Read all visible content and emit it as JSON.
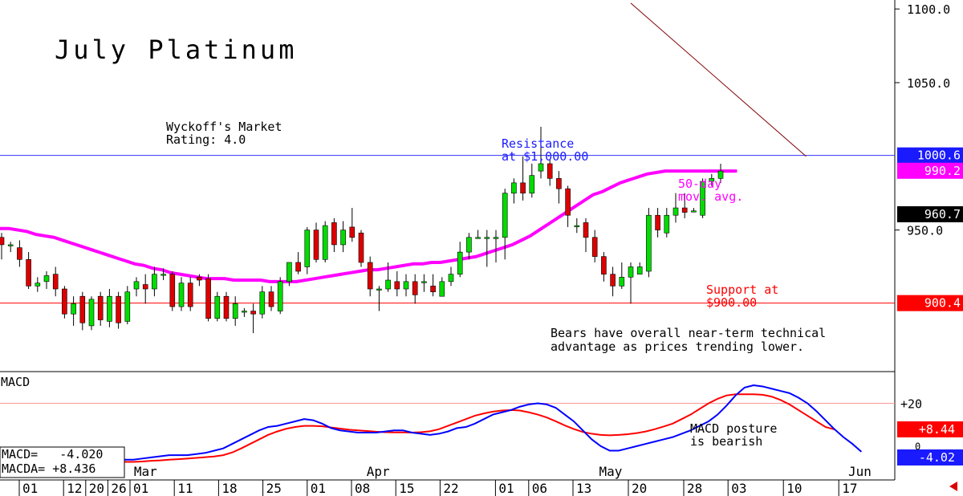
{
  "colors": {
    "up": "#00dd00",
    "down": "#dd0000",
    "ma": "#ff00ff",
    "macd": "#0000ff",
    "signal": "#ff0000",
    "resistance": "#3333ff",
    "support": "#ff0000",
    "trendline": "#800000"
  },
  "chart_data": {
    "type": "candlestick",
    "title": "July Platinum",
    "rating_line1": "Wyckoff's Market",
    "rating_line2": "Rating: 4.0",
    "price_ylim": [
      855,
      1105
    ],
    "price_ticks": [
      "1100.0",
      "1050.0",
      "950.0"
    ],
    "price_tick_values": [
      1100,
      1050,
      950
    ],
    "x_range": [
      -1,
      86
    ],
    "price_labels": [
      {
        "text": "1000.6",
        "value": 1000.6,
        "color": "#1a1aff",
        "text_color": "#ffffff"
      },
      {
        "text": "990.2",
        "value": 990.2,
        "color": "#ff00ff",
        "text_color": "#ffffff"
      },
      {
        "text": "960.7",
        "value": 960.7,
        "color": "#000000",
        "text_color": "#ffffff"
      },
      {
        "text": "900.4",
        "value": 900.4,
        "color": "#ff0000",
        "text_color": "#ffffff"
      }
    ],
    "resistance": {
      "value": 1000.6,
      "line1": "Resistance",
      "line2": "at $1,000.00"
    },
    "support": {
      "value": 900.4,
      "line1": "Support at",
      "line2": "$900.00"
    },
    "ma_label_line1": "50-day",
    "ma_label_line2": "mov. avg.",
    "annotation_line1": "Bears have overall near-term technical",
    "annotation_line2": "advantage as prices trending lower.",
    "trendline": [
      {
        "x": 70,
        "y": 1104
      },
      {
        "x": 89.5,
        "y": 1000
      }
    ],
    "candles": [
      {
        "o": 945,
        "h": 948,
        "l": 930,
        "c": 940
      },
      {
        "o": 940,
        "h": 942,
        "l": 935,
        "c": 940
      },
      {
        "o": 938,
        "h": 943,
        "l": 925,
        "c": 930
      },
      {
        "o": 930,
        "h": 935,
        "l": 910,
        "c": 912
      },
      {
        "o": 912,
        "h": 918,
        "l": 908,
        "c": 914
      },
      {
        "o": 915,
        "h": 922,
        "l": 910,
        "c": 919
      },
      {
        "o": 920,
        "h": 925,
        "l": 905,
        "c": 910
      },
      {
        "o": 910,
        "h": 912,
        "l": 890,
        "c": 893
      },
      {
        "o": 893,
        "h": 905,
        "l": 885,
        "c": 900
      },
      {
        "o": 905,
        "h": 908,
        "l": 882,
        "c": 887
      },
      {
        "o": 885,
        "h": 905,
        "l": 882,
        "c": 903
      },
      {
        "o": 905,
        "h": 908,
        "l": 885,
        "c": 889
      },
      {
        "o": 888,
        "h": 910,
        "l": 884,
        "c": 905
      },
      {
        "o": 905,
        "h": 908,
        "l": 883,
        "c": 887
      },
      {
        "o": 888,
        "h": 912,
        "l": 886,
        "c": 908
      },
      {
        "o": 910,
        "h": 918,
        "l": 905,
        "c": 915
      },
      {
        "o": 913,
        "h": 920,
        "l": 900,
        "c": 910
      },
      {
        "o": 910,
        "h": 925,
        "l": 905,
        "c": 920
      },
      {
        "o": 920,
        "h": 924,
        "l": 916,
        "c": 920
      },
      {
        "o": 920,
        "h": 922,
        "l": 895,
        "c": 898
      },
      {
        "o": 898,
        "h": 918,
        "l": 895,
        "c": 914
      },
      {
        "o": 914,
        "h": 918,
        "l": 895,
        "c": 898
      },
      {
        "o": 918,
        "h": 920,
        "l": 912,
        "c": 916
      },
      {
        "o": 917,
        "h": 920,
        "l": 888,
        "c": 890
      },
      {
        "o": 890,
        "h": 908,
        "l": 888,
        "c": 905
      },
      {
        "o": 905,
        "h": 908,
        "l": 888,
        "c": 890
      },
      {
        "o": 890,
        "h": 905,
        "l": 885,
        "c": 900
      },
      {
        "o": 895,
        "h": 897,
        "l": 891,
        "c": 895
      },
      {
        "o": 895,
        "h": 900,
        "l": 880,
        "c": 893
      },
      {
        "o": 893,
        "h": 912,
        "l": 890,
        "c": 908
      },
      {
        "o": 908,
        "h": 912,
        "l": 895,
        "c": 898
      },
      {
        "o": 895,
        "h": 918,
        "l": 893,
        "c": 915
      },
      {
        "o": 915,
        "h": 928,
        "l": 912,
        "c": 928
      },
      {
        "o": 928,
        "h": 935,
        "l": 920,
        "c": 922
      },
      {
        "o": 925,
        "h": 952,
        "l": 920,
        "c": 950
      },
      {
        "o": 950,
        "h": 955,
        "l": 928,
        "c": 930
      },
      {
        "o": 930,
        "h": 956,
        "l": 928,
        "c": 953
      },
      {
        "o": 955,
        "h": 958,
        "l": 935,
        "c": 940
      },
      {
        "o": 940,
        "h": 956,
        "l": 935,
        "c": 950
      },
      {
        "o": 952,
        "h": 965,
        "l": 942,
        "c": 945
      },
      {
        "o": 948,
        "h": 950,
        "l": 925,
        "c": 928
      },
      {
        "o": 928,
        "h": 932,
        "l": 905,
        "c": 910
      },
      {
        "o": 910,
        "h": 912,
        "l": 895,
        "c": 910
      },
      {
        "o": 910,
        "h": 928,
        "l": 908,
        "c": 916
      },
      {
        "o": 915,
        "h": 922,
        "l": 905,
        "c": 910
      },
      {
        "o": 910,
        "h": 920,
        "l": 905,
        "c": 915
      },
      {
        "o": 915,
        "h": 920,
        "l": 900,
        "c": 906
      },
      {
        "o": 915,
        "h": 920,
        "l": 908,
        "c": 915
      },
      {
        "o": 912,
        "h": 920,
        "l": 905,
        "c": 908
      },
      {
        "o": 905,
        "h": 918,
        "l": 905,
        "c": 915
      },
      {
        "o": 915,
        "h": 925,
        "l": 912,
        "c": 920
      },
      {
        "o": 920,
        "h": 942,
        "l": 918,
        "c": 935
      },
      {
        "o": 935,
        "h": 948,
        "l": 930,
        "c": 945
      },
      {
        "o": 945,
        "h": 950,
        "l": 945,
        "c": 945
      },
      {
        "o": 945,
        "h": 950,
        "l": 925,
        "c": 945
      },
      {
        "o": 945,
        "h": 950,
        "l": 928,
        "c": 945
      },
      {
        "o": 945,
        "h": 978,
        "l": 930,
        "c": 975
      },
      {
        "o": 975,
        "h": 985,
        "l": 968,
        "c": 982
      },
      {
        "o": 982,
        "h": 1000,
        "l": 970,
        "c": 975
      },
      {
        "o": 975,
        "h": 995,
        "l": 972,
        "c": 987
      },
      {
        "o": 990,
        "h": 1020,
        "l": 985,
        "c": 995
      },
      {
        "o": 995,
        "h": 998,
        "l": 980,
        "c": 985
      },
      {
        "o": 985,
        "h": 990,
        "l": 968,
        "c": 978
      },
      {
        "o": 978,
        "h": 980,
        "l": 952,
        "c": 960
      },
      {
        "o": 953,
        "h": 958,
        "l": 948,
        "c": 953
      },
      {
        "o": 955,
        "h": 958,
        "l": 935,
        "c": 945
      },
      {
        "o": 945,
        "h": 950,
        "l": 928,
        "c": 932
      },
      {
        "o": 932,
        "h": 935,
        "l": 915,
        "c": 920
      },
      {
        "o": 920,
        "h": 925,
        "l": 905,
        "c": 912
      },
      {
        "o": 912,
        "h": 928,
        "l": 910,
        "c": 918
      },
      {
        "o": 918,
        "h": 928,
        "l": 900,
        "c": 925
      },
      {
        "o": 920,
        "h": 928,
        "l": 920,
        "c": 925
      },
      {
        "o": 922,
        "h": 965,
        "l": 918,
        "c": 960
      }
    ],
    "candles2": [
      {
        "o": 960,
        "h": 965,
        "l": 945,
        "c": 950
      },
      {
        "o": 948,
        "h": 965,
        "l": 945,
        "c": 960
      },
      {
        "o": 960,
        "h": 975,
        "l": 955,
        "c": 965
      },
      {
        "o": 965,
        "h": 975,
        "l": 958,
        "c": 962
      },
      {
        "o": 963,
        "h": 965,
        "l": 962,
        "c": 963
      },
      {
        "o": 960,
        "h": 985,
        "l": 958,
        "c": 983
      },
      {
        "o": 983,
        "h": 988,
        "l": 980,
        "c": 985
      },
      {
        "o": 985,
        "h": 995,
        "l": 982,
        "c": 990
      }
    ],
    "ma": [
      951,
      951,
      950,
      949,
      947,
      946,
      945,
      943,
      941,
      939,
      937,
      935,
      933,
      931,
      929,
      927,
      926,
      924,
      923,
      921,
      920,
      919,
      918,
      917,
      917,
      917,
      916,
      916,
      916,
      916,
      915,
      915,
      915,
      915,
      916,
      917,
      918,
      919,
      920,
      921,
      922,
      923,
      923,
      924,
      925,
      926,
      927,
      927,
      928,
      928,
      929,
      930,
      931,
      932,
      934,
      936,
      938,
      940,
      943,
      946,
      950,
      954,
      958,
      962,
      966,
      970,
      974,
      976,
      979,
      982,
      984,
      986,
      988,
      989,
      990,
      990,
      990,
      990,
      990,
      990,
      990,
      990,
      990
    ],
    "macd_ylim": [
      -14,
      33
    ],
    "macd_ticks": [
      "+20"
    ],
    "macd_label": "MACD",
    "macd_readout1": "MACD=   -4.020",
    "macd_readout2": "MACDA= +8.436",
    "macd_labels": [
      {
        "text": "+8.44",
        "value": 8.44,
        "color": "#ff0000"
      },
      {
        "text": "-4.02",
        "value": -4.02,
        "color": "#1a1aff"
      }
    ],
    "macd_zero_text": "0",
    "macd_note_line1": "MACD posture",
    "macd_note_line2": "is bearish",
    "macd": [
      -5,
      -5,
      -4.5,
      -4,
      -3.5,
      -3,
      -3,
      -3,
      -2.5,
      -2,
      -1,
      0,
      2,
      4,
      6,
      8,
      9.5,
      10,
      11,
      12,
      13,
      12.5,
      11,
      9,
      8,
      7.5,
      7,
      7,
      7,
      7.5,
      8,
      8,
      7,
      6.5,
      6,
      6.5,
      7.5,
      9,
      9.5,
      11,
      13,
      15,
      16,
      17,
      18.5,
      19.5,
      20,
      19.5,
      18,
      15,
      12,
      8,
      4,
      1,
      -1,
      -1,
      0,
      1,
      2,
      3,
      4,
      5,
      6.5,
      8,
      10,
      12,
      15,
      19,
      23.5,
      27,
      28,
      27.5,
      26.5,
      25.5,
      24.5,
      22.5,
      20,
      16.5,
      12.5,
      8.5,
      5,
      2,
      -1.5
    ],
    "signal": [
      -6,
      -6,
      -5.8,
      -5.5,
      -5.3,
      -5,
      -4.8,
      -4.5,
      -4.2,
      -3.9,
      -3.6,
      -3,
      -1.8,
      0,
      2,
      4,
      6,
      7.5,
      8.7,
      9.5,
      10,
      10,
      9.8,
      9.3,
      8.8,
      8.3,
      8,
      7.7,
      7.4,
      7.2,
      7.1,
      7.1,
      7,
      7.2,
      7.6,
      8.5,
      10,
      11.5,
      13,
      14.5,
      15.5,
      16.3,
      16.8,
      17,
      16.8,
      16,
      15,
      13.7,
      12,
      10.2,
      8.6,
      7.3,
      6.5,
      6,
      5.8,
      6,
      6.3,
      6.8,
      7.5,
      8.5,
      9.7,
      11,
      13,
      15,
      17.5,
      20,
      22,
      23.5,
      24,
      24,
      24,
      23.8,
      23,
      21.5,
      19.5,
      17,
      14.5,
      12,
      9.5,
      8.4
    ],
    "month_labels": [
      {
        "text": "Mar",
        "i": 10.5
      },
      {
        "text": "Apr",
        "i": 31.5
      },
      {
        "text": "May",
        "i": 52.5
      },
      {
        "text": "Jun",
        "i": 75
      }
    ],
    "date_labels": [
      {
        "text": "01",
        "i": 0
      },
      {
        "text": "12",
        "i": 4
      },
      {
        "text": "20",
        "i": 6
      },
      {
        "text": "26",
        "i": 8
      },
      {
        "text": "01",
        "i": 10
      },
      {
        "text": "11",
        "i": 14
      },
      {
        "text": "18",
        "i": 18
      },
      {
        "text": "25",
        "i": 22
      },
      {
        "text": "01",
        "i": 26
      },
      {
        "text": "08",
        "i": 30
      },
      {
        "text": "15",
        "i": 34
      },
      {
        "text": "22",
        "i": 38
      },
      {
        "text": "01",
        "i": 43
      },
      {
        "text": "06",
        "i": 46
      },
      {
        "text": "13",
        "i": 50
      },
      {
        "text": "20",
        "i": 55
      },
      {
        "text": "28",
        "i": 60
      },
      {
        "text": "03",
        "i": 64
      },
      {
        "text": "10",
        "i": 69
      },
      {
        "text": "17",
        "i": 74
      }
    ]
  }
}
